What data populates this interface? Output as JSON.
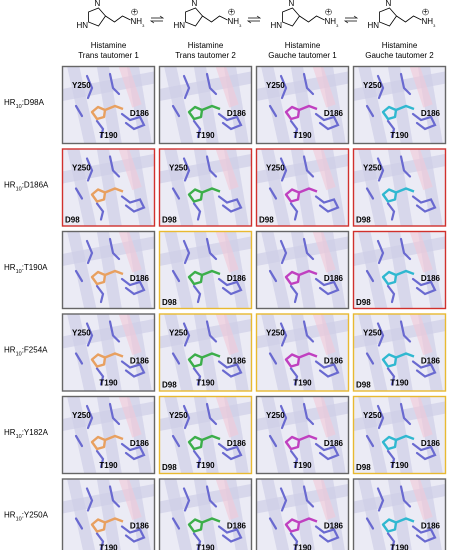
{
  "structure": {
    "ring_hn": "HN",
    "ring_n": "N",
    "amine": "NH",
    "amine_sub": "3",
    "charge": "+"
  },
  "columns": [
    {
      "compound": "Histamine",
      "tautomer": "Trans tautomer  1",
      "ligand_color": "#e8a060"
    },
    {
      "compound": "Histamine",
      "tautomer": "Trans tautomer  2",
      "ligand_color": "#3cae4a"
    },
    {
      "compound": "Histamine",
      "tautomer": "Gauche tautomer  1",
      "ligand_color": "#c040c0"
    },
    {
      "compound": "Histamine",
      "tautomer": "Gauche tautomer  2",
      "ligand_color": "#30b8d0"
    }
  ],
  "rows": [
    {
      "prefix": "HR",
      "subscript": "10",
      "mutation": ":D98A",
      "panels": [
        {
          "border": "#666666",
          "labels": {
            "top_left": "Y250",
            "right": "D186",
            "bottom": "T190"
          }
        },
        {
          "border": "#666666",
          "labels": {
            "right": "D186",
            "bottom": "T190"
          }
        },
        {
          "border": "#666666",
          "labels": {
            "top_left": "Y250",
            "right": "D186",
            "bottom": "T190"
          }
        },
        {
          "border": "#666666",
          "labels": {
            "top_left": "Y250",
            "right": "D186",
            "bottom": "T190"
          }
        }
      ]
    },
    {
      "prefix": "HR",
      "subscript": "10",
      "mutation": ":D186A",
      "panels": [
        {
          "border": "#d0312d",
          "labels": {
            "top_left": "Y250",
            "bottom_left": "D98"
          }
        },
        {
          "border": "#d0312d",
          "labels": {
            "top_left": "Y250",
            "bottom_left": "D98"
          }
        },
        {
          "border": "#d0312d",
          "labels": {
            "top_left": "Y250",
            "bottom_left": "D98"
          }
        },
        {
          "border": "#d0312d",
          "labels": {
            "top_left": "Y250",
            "bottom_left": "D98"
          }
        }
      ]
    },
    {
      "prefix": "HR",
      "subscript": "10",
      "mutation": ":T190A",
      "panels": [
        {
          "border": "#666666",
          "labels": {
            "right": "D186"
          }
        },
        {
          "border": "#e8b931",
          "labels": {
            "right": "D186",
            "bottom_left": "D98"
          }
        },
        {
          "border": "#666666",
          "labels": {
            "right": "D186"
          }
        },
        {
          "border": "#d0312d",
          "labels": {
            "right": "D186",
            "bottom_left": "D98"
          }
        }
      ]
    },
    {
      "prefix": "HR",
      "subscript": "10",
      "mutation": ":F254A",
      "panels": [
        {
          "border": "#666666",
          "labels": {
            "top_left": "Y250",
            "right": "D186",
            "bottom": "T190"
          }
        },
        {
          "border": "#e8b931",
          "labels": {
            "top_left": "Y250",
            "right": "D186",
            "bottom": "T190",
            "bottom_left": "D98"
          }
        },
        {
          "border": "#e8b931",
          "labels": {
            "top_left": "Y250",
            "right": "D186",
            "bottom": "T190"
          }
        },
        {
          "border": "#e8b931",
          "labels": {
            "top_left": "Y250",
            "right": "D186",
            "bottom": "T190",
            "bottom_left": "D98"
          }
        }
      ]
    },
    {
      "prefix": "HR",
      "subscript": "10",
      "mutation": ":Y182A",
      "panels": [
        {
          "border": "#666666",
          "labels": {
            "top_left": "Y250",
            "right": "D186",
            "bottom": "T190"
          }
        },
        {
          "border": "#e8b931",
          "labels": {
            "top_left": "Y250",
            "right": "D186",
            "bottom": "T190",
            "bottom_left": "D98"
          }
        },
        {
          "border": "#666666",
          "labels": {
            "top_left": "Y250",
            "right": "D186",
            "bottom": "T190"
          }
        },
        {
          "border": "#e8b931",
          "labels": {
            "top_left": "Y250",
            "right": "D186",
            "bottom": "T190",
            "bottom_left": "D98"
          }
        }
      ]
    },
    {
      "prefix": "HR",
      "subscript": "10",
      "mutation": ":Y250A",
      "panels": [
        {
          "border": "#666666",
          "labels": {
            "right": "D186",
            "bottom": "T190"
          }
        },
        {
          "border": "#666666",
          "labels": {
            "right": "D186",
            "bottom": "T190"
          }
        },
        {
          "border": "#666666",
          "labels": {
            "right": "D186",
            "bottom": "T190"
          }
        },
        {
          "border": "#666666",
          "labels": {
            "right": "D186",
            "bottom": "T190"
          }
        }
      ]
    }
  ]
}
